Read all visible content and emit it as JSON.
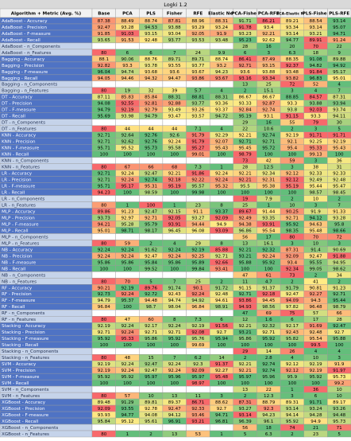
{
  "table": {
    "title": "Logki 1.2",
    "header": [
      "Algorithm + Metric (Avg. %)",
      "Base",
      "PCA",
      "PLS",
      "Fisher",
      "RFE",
      "Elastic Net",
      "PCA-Fisher",
      "PCA-RFE",
      "PCA-Elastic Net",
      "PLS-Fisher",
      "PLS-RFE"
    ],
    "color_scale": [
      "#f8696b",
      "#ffeb84",
      "#63be7b"
    ],
    "rows": [
      {
        "label": "AdaBoost - Accuracy",
        "values": [
          87.38,
          88.49,
          88.74,
          87.81,
          88.96,
          88.31,
          91.71,
          86.21,
          89.21,
          88.54,
          93.14
        ]
      },
      {
        "label": "AdaBoost - Precision",
        "values": [
          92.47,
          93.28,
          94.53,
          93.88,
          93.29,
          93.24,
          91.78,
          93.4,
          93.34,
          93.14,
          95.07
        ]
      },
      {
        "label": "AdaBoost - F-measure",
        "values": [
          91.85,
          91.03,
          93.15,
          93.04,
          92.05,
          91.9,
          93.23,
          92.21,
          93.14,
          93.21,
          94.71
        ]
      },
      {
        "label": "AdaBoost - Recall",
        "values": [
          93.65,
          91.53,
          92.48,
          93.77,
          93.53,
          93.48,
          95.23,
          92.62,
          94.77,
          89.91,
          91.24
        ]
      },
      {
        "label": "AdaBoost - n_Components",
        "values": [
          null,
          null,
          null,
          null,
          null,
          null,
          28,
          16,
          20,
          70,
          22
        ]
      },
      {
        "label": "AdaBoost - n_Features",
        "values": [
          80,
          6,
          6,
          7,
          24,
          9.9,
          6,
          3,
          6.3,
          18,
          9
        ]
      },
      {
        "label": "Bagging - Accuracy",
        "values": [
          88.1,
          90.06,
          88.76,
          89.71,
          89.71,
          88.74,
          86.41,
          87.49,
          88.35,
          91.08,
          89.88
        ]
      },
      {
        "label": "Bagging - Precision",
        "values": [
          92.82,
          93.3,
          93.78,
          93.55,
          93.77,
          93.2,
          92.71,
          93.15,
          92.37,
          94.82,
          94.92
        ]
      },
      {
        "label": "Bagging - F-measure",
        "values": [
          96.04,
          94.74,
          93.68,
          93.6,
          93.67,
          94.23,
          93.6,
          93.88,
          93.48,
          91.84,
          95.17
        ]
      },
      {
        "label": "Bagging - Recall",
        "values": [
          94.05,
          94.46,
          94.32,
          94.47,
          93.86,
          93.67,
          93.16,
          93.34,
          93.82,
          96.83,
          95.01
        ]
      },
      {
        "label": "Bagging - n_Components",
        "values": [
          null,
          null,
          null,
          null,
          null,
          null,
          13,
          25,
          72,
          52,
          4
        ]
      },
      {
        "label": "Bagging - n_Features",
        "values": [
          80,
          19,
          32,
          39,
          5.7,
          4,
          2,
          15.1,
          3,
          4,
          7
        ]
      },
      {
        "label": "DT - Accuracy",
        "values": [
          87.11,
          85.83,
          85.84,
          88.31,
          88.81,
          88.31,
          86.67,
          86.67,
          88.85,
          84.57,
          87.31
        ]
      },
      {
        "label": "DT - Precision",
        "values": [
          94.08,
          92.55,
          92.81,
          92.88,
          93.77,
          93.36,
          93.33,
          92.87,
          93.3,
          93.88,
          93.94
        ]
      },
      {
        "label": "DT - F-measure",
        "values": [
          94.79,
          92.19,
          92.79,
          93.49,
          93.26,
          93.37,
          92.84,
          92.74,
          93.8,
          92.03,
          93.74
        ]
      },
      {
        "label": "DT - Recall",
        "values": [
          95.69,
          93.98,
          94.79,
          93.47,
          93.57,
          94.72,
          95.19,
          93.1,
          91.15,
          93.3,
          94.11
        ]
      },
      {
        "label": "DT - n_Components",
        "values": [
          null,
          null,
          null,
          null,
          null,
          null,
          29,
          16,
          55,
          79,
          30
        ]
      },
      {
        "label": "DT - n_Features",
        "values": [
          80,
          44,
          44,
          44,
          7.1,
          4,
          22,
          10.6,
          2,
          3,
          5
        ]
      },
      {
        "label": "KNN - Accuracy",
        "values": [
          92.71,
          92.64,
          92.76,
          92.6,
          91.79,
          92.29,
          92.21,
          92.74,
          92.19,
          91.71,
          91.71
        ]
      },
      {
        "label": "KNN - Precision",
        "values": [
          92.71,
          92.62,
          92.76,
          92.24,
          91.79,
          92.07,
          92.71,
          92.71,
          92.1,
          92.25,
          92.19
        ]
      },
      {
        "label": "KNN - F-measure",
        "values": [
          95.71,
          95.52,
          95.73,
          95.58,
          95.27,
          95.43,
          95.45,
          95.72,
          95.4,
          95.33,
          95.43
        ]
      },
      {
        "label": "KNN - Recall",
        "values": [
          100,
          100,
          100,
          100,
          99.01,
          100,
          98.79,
          100,
          100,
          99.13,
          100
        ]
      },
      {
        "label": "KNN - n_Components",
        "values": [
          null,
          null,
          null,
          null,
          null,
          null,
          73,
          42,
          59,
          3,
          36
        ]
      },
      {
        "label": "KNN - n_Features",
        "values": [
          80,
          67,
          66,
          68,
          7.3,
          1,
          28,
          12.5,
          3,
          38,
          31
        ]
      },
      {
        "label": "LR - Accuracy",
        "values": [
          92.71,
          92.24,
          92.47,
          92.21,
          91.86,
          92.24,
          92.21,
          92.34,
          92.12,
          92.33,
          92.33
        ]
      },
      {
        "label": "LR - Precision",
        "values": [
          92.71,
          92.24,
          92.74,
          92.18,
          92.22,
          92.24,
          92.21,
          92.31,
          92.12,
          92.49,
          92.48
        ]
      },
      {
        "label": "LR - F-measure",
        "values": [
          95.71,
          95.17,
          95.31,
          95.19,
          95.57,
          95.32,
          95.5,
          95.38,
          95.19,
          95.44,
          95.47
        ]
      },
      {
        "label": "LR - Recall",
        "values": [
          94.23,
          100,
          98.59,
          100,
          99.98,
          100,
          100,
          100,
          100,
          98.57,
          98.45
        ]
      },
      {
        "label": "LR - n_Components",
        "values": [
          null,
          null,
          null,
          null,
          null,
          null,
          19,
          7.9,
          2,
          10,
          2
        ]
      },
      {
        "label": "LR - n_Features",
        "values": [
          80,
          1,
          100,
          1,
          23,
          8,
          25,
          1,
          10,
          3,
          7
        ]
      },
      {
        "label": "MLP - Accuracy",
        "values": [
          89.86,
          91.23,
          92.47,
          92.15,
          91.1,
          93.37,
          89.67,
          91.44,
          90.25,
          91.9,
          91.33
        ]
      },
      {
        "label": "MLP - Precision",
        "values": [
          93.73,
          92.97,
          92.71,
          92.05,
          93.27,
          92.09,
          92.49,
          93.35,
          92.71,
          94.12,
          93.28
        ]
      },
      {
        "label": "MLP - F-measure",
        "values": [
          94.21,
          95.28,
          95.79,
          93.91,
          94.44,
          94.9,
          94.38,
          93.91,
          95.92,
          94.63,
          95.8
        ]
      },
      {
        "label": "MLP - Recall",
        "values": [
          95.01,
          98.71,
          98.17,
          96.45,
          96.08,
          93.09,
          96.86,
          95.54,
          98.35,
          95.48,
          98.66
        ]
      },
      {
        "label": "MLP - n_Components",
        "values": [
          null,
          null,
          null,
          null,
          null,
          null,
          56,
          17,
          80,
          70,
          72
        ]
      },
      {
        "label": "MLP - n_Features",
        "values": [
          80,
          59,
          2,
          4,
          29,
          8,
          13,
          16.1,
          3,
          10,
          3
        ]
      },
      {
        "label": "NB - Accuracy",
        "values": [
          92.24,
          92.24,
          91.62,
          92.24,
          92.19,
          85.88,
          92.21,
          92.32,
          87.31,
          91.4,
          90.69
        ]
      },
      {
        "label": "NB - Precision",
        "values": [
          92.24,
          92.24,
          92.47,
          92.24,
          92.25,
          92.71,
          93.21,
          92.24,
          92.09,
          92.47,
          91.88
        ]
      },
      {
        "label": "NB - F-measure",
        "values": [
          95.86,
          95.86,
          95.84,
          95.86,
          95.89,
          92.66,
          95.88,
          95.92,
          93.4,
          95.55,
          94.95
        ]
      },
      {
        "label": "NB - Recall",
        "values": [
          100,
          100,
          99.52,
          100,
          99.84,
          93.41,
          100,
          100,
          92.34,
          99.05,
          98.62
        ]
      },
      {
        "label": "NB - n_Components",
        "values": [
          null,
          null,
          null,
          null,
          null,
          null,
          47,
          61,
          73,
          2,
          34
        ]
      },
      {
        "label": "NB - n_Features",
        "values": [
          80,
          70,
          5,
          7,
          25,
          2,
          11,
          4.7,
          2,
          41,
          2
        ]
      },
      {
        "label": "RF - Accuracy",
        "values": [
          90.21,
          92.19,
          89.76,
          91.74,
          90.1,
          91.72,
          91.15,
          91.37,
          91.79,
          90.81,
          91.23
        ]
      },
      {
        "label": "RF - Precision",
        "values": [
          92.73,
          92.24,
          92.72,
          92.43,
          92.24,
          92.48,
          92.71,
          92.18,
          92.47,
          92.27,
          92.71
        ]
      },
      {
        "label": "RF - F-measure",
        "values": [
          94.79,
          95.37,
          94.48,
          94.74,
          94.92,
          94.61,
          93.86,
          94.45,
          94.09,
          94.3,
          95.44
        ]
      },
      {
        "label": "RF - Recall",
        "values": [
          96.84,
          100,
          98.7,
          98.04,
          96.84,
          98.91,
          94.93,
          98.56,
          97.82,
          96.48,
          98.79
        ]
      },
      {
        "label": "RF - n_Components",
        "values": [
          null,
          null,
          null,
          null,
          null,
          null,
          47,
          69,
          75,
          57,
          66
        ]
      },
      {
        "label": "RF - n_Features",
        "values": [
          80,
          47,
          60,
          8,
          7.3,
          6,
          12,
          1.6,
          6,
          17,
          28
        ]
      },
      {
        "label": "Stacking - Accuracy",
        "values": [
          92.19,
          92.24,
          92.17,
          92.24,
          92.19,
          91.56,
          92.21,
          92.32,
          92.17,
          91.69,
          92.47
        ]
      },
      {
        "label": "Stacking - Precision",
        "values": [
          92.71,
          92.24,
          92.71,
          92.71,
          92.08,
          92.7,
          93.21,
          92.71,
          92.43,
          92.48,
          92.7
        ]
      },
      {
        "label": "Stacking - F-measure",
        "values": [
          95.92,
          95.33,
          95.86,
          95.92,
          95.76,
          95.94,
          95.86,
          95.92,
          95.82,
          95.54,
          95.88
        ]
      },
      {
        "label": "Stacking - Recall",
        "values": [
          100,
          100,
          100,
          100,
          99.69,
          100,
          100,
          100,
          100,
          99.5,
          100
        ]
      },
      {
        "label": "Stacking - n_Components",
        "values": [
          null,
          null,
          null,
          null,
          null,
          null,
          29,
          14,
          26,
          4,
          4
        ]
      },
      {
        "label": "Stacking - n_Features",
        "values": [
          80,
          48,
          15,
          7,
          6.2,
          14,
          2,
          2.8,
          4,
          10,
          3
        ]
      },
      {
        "label": "SVM - Accuracy",
        "values": [
          92.19,
          92.24,
          92.47,
          92.24,
          92.3,
          91.37,
          92.21,
          92.74,
          92.12,
          92.19,
          91.9
        ]
      },
      {
        "label": "SVM - Precision",
        "values": [
          92.19,
          92.24,
          92.47,
          92.24,
          92.09,
          92.27,
          92.21,
          92.74,
          92.12,
          92.19,
          91.97
        ]
      },
      {
        "label": "SVM - F-measure",
        "values": [
          95.92,
          95.92,
          95.97,
          95.96,
          95.97,
          95.48,
          95.97,
          95.96,
          95.9,
          95.92,
          95.73
        ]
      },
      {
        "label": "SVM - Recall",
        "values": [
          100,
          100,
          100,
          100,
          98.97,
          100,
          100,
          100,
          100,
          100,
          99.2
        ]
      },
      {
        "label": "SVM - n_Components",
        "values": [
          null,
          null,
          null,
          null,
          null,
          null,
          13,
          22,
          1,
          36,
          10
        ]
      },
      {
        "label": "SVM - n_Features",
        "values": [
          80,
          57,
          10,
          13,
          11,
          3,
          2,
          12.3,
          3,
          6,
          10
        ]
      },
      {
        "label": "XGBoost - Accuracy",
        "values": [
          89.48,
          91.29,
          89.81,
          89.37,
          86.71,
          88.62,
          87.31,
          88.79,
          89.31,
          91.71,
          89.17
        ]
      },
      {
        "label": "XGBoost - Precision",
        "values": [
          92.09,
          93.55,
          92.78,
          92.47,
          92.33,
          92.7,
          93.27,
          92.3,
          93.14,
          93.24,
          93.26
        ]
      },
      {
        "label": "XGBoost - F-measure",
        "values": [
          93.93,
          94.77,
          94.08,
          94.12,
          93.46,
          94.71,
          93.14,
          94.23,
          94.14,
          94.28,
          94.48
        ]
      },
      {
        "label": "XGBoost - Recall",
        "values": [
          95.84,
          95.12,
          95.61,
          96.91,
          93.21,
          96.81,
          96.39,
          96.1,
          95.92,
          94.9,
          95.73
        ]
      },
      {
        "label": "XGBoost - n_Components",
        "values": [
          null,
          null,
          null,
          null,
          null,
          null,
          56,
          18,
          74,
          21,
          71
        ]
      },
      {
        "label": "XGBoost - n_Features",
        "values": [
          80,
          1,
          2,
          13,
          53,
          1,
          5,
          6.3,
          2,
          23,
          5
        ]
      }
    ]
  }
}
